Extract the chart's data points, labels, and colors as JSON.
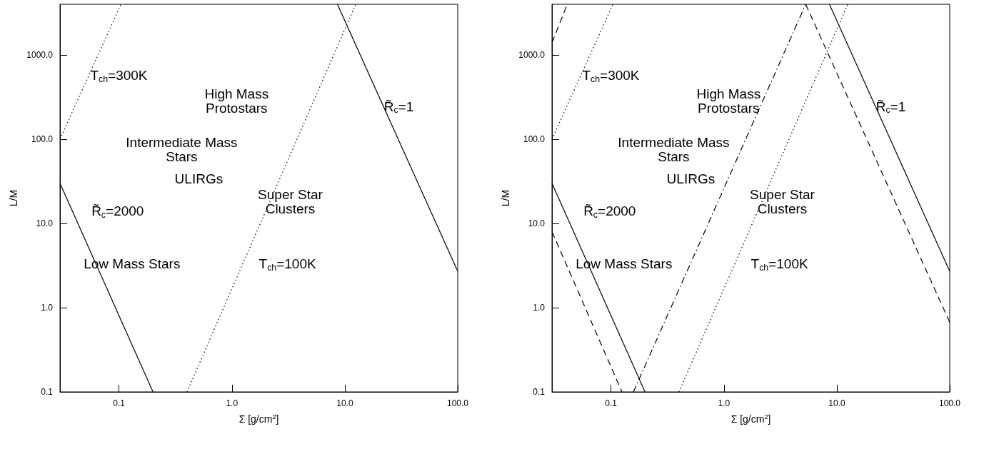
{
  "chart_data": [
    {
      "type": "line",
      "xlabel": "Σ [g/cm$^{2}$]",
      "ylabel": "L/M",
      "log": "xy",
      "grid": false,
      "marker": "none",
      "xlim": [
        0.03,
        100
      ],
      "ylim": [
        0.1,
        4000
      ],
      "xticks": [
        0.1,
        {
          "value": 1,
          "label": "1.0"
        },
        {
          "value": 10,
          "label": "10.0"
        },
        {
          "value": 100,
          "label": "100.0"
        }
      ],
      "yticks": [
        0.1,
        {
          "value": 1,
          "label": "1.0"
        },
        {
          "value": 10,
          "label": "10.0"
        },
        {
          "value": 100,
          "label": "100.0"
        },
        {
          "value": 1000,
          "label": "1000.0"
        }
      ],
      "series": [
        {
          "color": "#000000",
          "line_style": "solid",
          "x": [
            0.03,
            0.2
          ],
          "values": [
            30,
            0.1
          ]
        },
        {
          "color": "#000000",
          "line_style": "solid",
          "x": [
            8.6,
            100
          ],
          "values": [
            4000,
            2.7
          ]
        },
        {
          "color": "#000000",
          "line_style": "dotted",
          "x": [
            0.03,
            0.104
          ],
          "values": [
            100,
            4000
          ]
        },
        {
          "color": "#000000",
          "line_style": "dotted",
          "x": [
            0.4,
            12.5
          ],
          "values": [
            0.1,
            4000
          ]
        }
      ],
      "annotations": [
        "T$_{ch}$=300K",
        "High Mass\nProtostars",
        "Intermediate Mass\nStars",
        "ULIRGs",
        "Super Star\nClusters",
        "R̃$_{c}$=2000",
        "Low Mass Stars",
        "T$_{ch}$=100K",
        "R̃$_{c}$=1"
      ]
    },
    {
      "type": "line",
      "xlabel": "Σ [g/cm$^{2}$]",
      "ylabel": "L/M",
      "log": "xy",
      "grid": false,
      "marker": "none",
      "xlim": [
        0.03,
        100
      ],
      "ylim": [
        0.1,
        4000
      ],
      "xticks": [
        0.1,
        {
          "value": 1,
          "label": "1.0"
        },
        {
          "value": 10,
          "label": "10.0"
        },
        {
          "value": 100,
          "label": "100.0"
        }
      ],
      "yticks": [
        0.1,
        {
          "value": 1,
          "label": "1.0"
        },
        {
          "value": 10,
          "label": "10.0"
        },
        {
          "value": 100,
          "label": "100.0"
        },
        {
          "value": 1000,
          "label": "1000.0"
        }
      ],
      "series": [
        {
          "color": "#000000",
          "line_style": "solid",
          "x": [
            0.03,
            0.2
          ],
          "values": [
            30,
            0.1
          ]
        },
        {
          "color": "#000000",
          "line_style": "solid",
          "x": [
            8.6,
            100
          ],
          "values": [
            4000,
            2.7
          ]
        },
        {
          "color": "#000000",
          "line_style": "dotted",
          "x": [
            0.03,
            0.104
          ],
          "values": [
            100,
            4000
          ]
        },
        {
          "color": "#000000",
          "line_style": "dotted",
          "x": [
            0.4,
            12.5
          ],
          "values": [
            0.1,
            4000
          ]
        },
        {
          "color": "#000000",
          "line_style": "dashed",
          "x": [
            0.03,
            0.125
          ],
          "values": [
            8,
            0.1
          ]
        },
        {
          "color": "#000000",
          "line_style": "dashed",
          "x": [
            0.03,
            0.041
          ],
          "values": [
            1400,
            4000
          ]
        },
        {
          "color": "#000000",
          "line_style": "dashed",
          "x": [
            5.3,
            100
          ],
          "values": [
            4000,
            0.67
          ]
        },
        {
          "color": "#000000",
          "line_style": "dashdot",
          "x": [
            0.158,
            5.3
          ],
          "values": [
            0.1,
            4000
          ]
        }
      ],
      "annotations": [
        "T$_{ch}$=300K",
        "High Mass\nProtostars",
        "Intermediate Mass\nStars",
        "ULIRGs",
        "Super Star\nClusters",
        "R̃$_{c}$=2000",
        "Low Mass Stars",
        "T$_{ch}$=100K",
        "R̃$_{c}$=1"
      ]
    }
  ]
}
